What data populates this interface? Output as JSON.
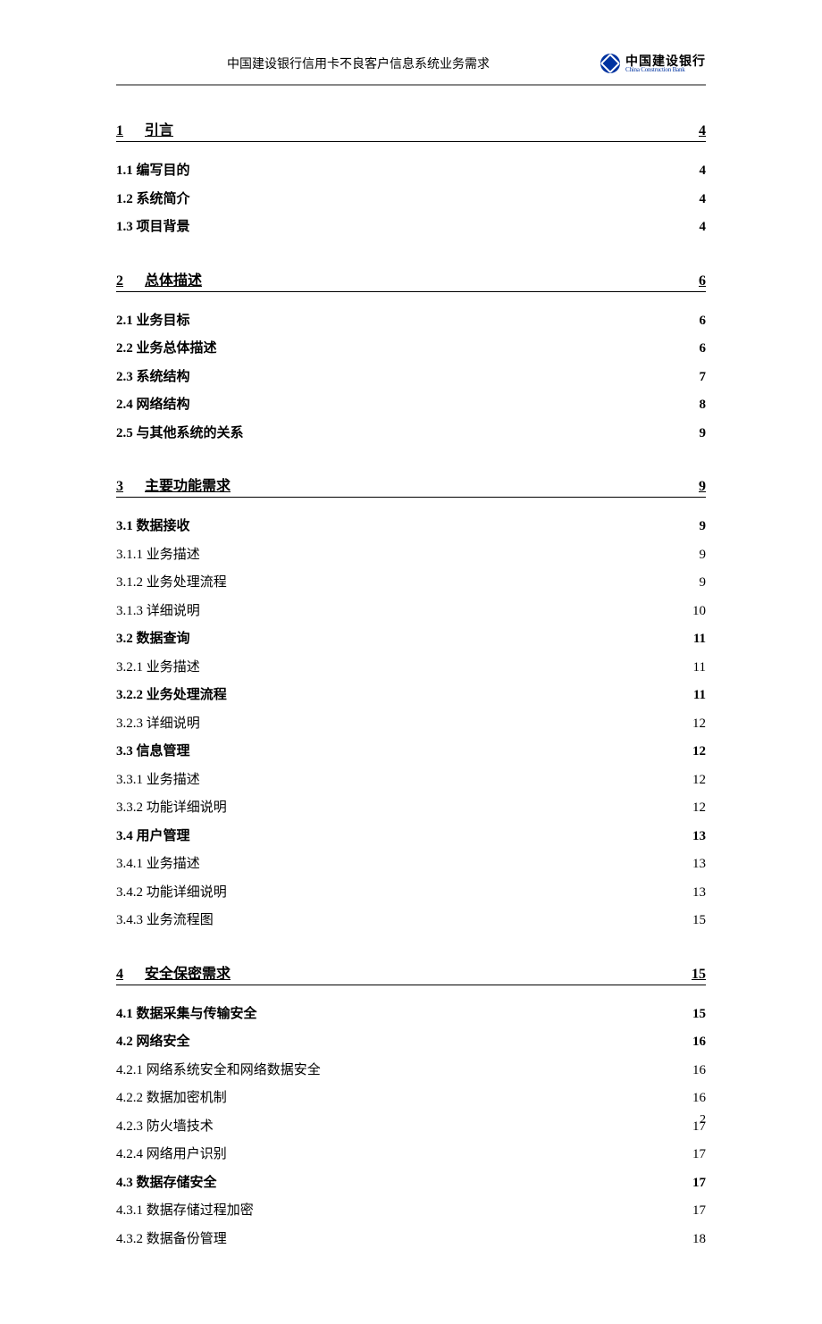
{
  "header": {
    "title": "中国建设银行信用卡不良客户信息系统业务需求",
    "logo_cn": "中国建设银行",
    "logo_en": "China Construction Bank"
  },
  "toc": [
    {
      "num": "1",
      "title": "引言",
      "page": "4",
      "entries": [
        {
          "label": "1.1 编写目的",
          "page": "4",
          "bold": true
        },
        {
          "label": "1.2 系统简介",
          "page": "4",
          "bold": true
        },
        {
          "label": "1.3 项目背景",
          "page": "4",
          "bold": true
        }
      ]
    },
    {
      "num": "2",
      "title": "总体描述",
      "page": "6",
      "entries": [
        {
          "label": "2.1 业务目标",
          "page": "6",
          "bold": true
        },
        {
          "label": "2.2 业务总体描述",
          "page": "6",
          "bold": true
        },
        {
          "label": "2.3 系统结构",
          "page": "7",
          "bold": true
        },
        {
          "label": "2.4 网络结构",
          "page": "8",
          "bold": true
        },
        {
          "label": "2.5 与其他系统的关系",
          "page": "9",
          "bold": true
        }
      ]
    },
    {
      "num": "3",
      "title": "主要功能需求",
      "page": "9",
      "entries": [
        {
          "label": "3.1 数据接收",
          "page": "9",
          "bold": true
        },
        {
          "label": "3.1.1 业务描述",
          "page": "9",
          "bold": false
        },
        {
          "label": "3.1.2 业务处理流程",
          "page": "9",
          "bold": false
        },
        {
          "label": "3.1.3 详细说明",
          "page": "10",
          "bold": false
        },
        {
          "label": "3.2 数据查询",
          "page": "11",
          "bold": true
        },
        {
          "label": "3.2.1 业务描述",
          "page": "11",
          "bold": false
        },
        {
          "label": "3.2.2 业务处理流程",
          "page": "11",
          "bold": true
        },
        {
          "label": "3.2.3 详细说明",
          "page": "12",
          "bold": false
        },
        {
          "label": "3.3 信息管理",
          "page": "12",
          "bold": true
        },
        {
          "label": "3.3.1 业务描述",
          "page": "12",
          "bold": false
        },
        {
          "label": "3.3.2 功能详细说明",
          "page": "12",
          "bold": false
        },
        {
          "label": "3.4 用户管理",
          "page": "13",
          "bold": true
        },
        {
          "label": "3.4.1 业务描述",
          "page": "13",
          "bold": false
        },
        {
          "label": "3.4.2 功能详细说明",
          "page": "13",
          "bold": false
        },
        {
          "label": "3.4.3 业务流程图",
          "page": "15",
          "bold": false
        }
      ]
    },
    {
      "num": "4",
      "title": "安全保密需求",
      "page": "15",
      "entries": [
        {
          "label": "4.1 数据采集与传输安全",
          "page": "15",
          "bold": true
        },
        {
          "label": "4.2 网络安全",
          "page": "16",
          "bold": true
        },
        {
          "label": "4.2.1 网络系统安全和网络数据安全",
          "page": "16",
          "bold": false
        },
        {
          "label": "4.2.2 数据加密机制",
          "page": "16",
          "bold": false
        },
        {
          "label": "4.2.3 防火墙技术",
          "page": "17",
          "bold": false
        },
        {
          "label": "4.2.4 网络用户识别",
          "page": "17",
          "bold": false
        },
        {
          "label": "4.3 数据存储安全",
          "page": "17",
          "bold": true
        },
        {
          "label": "4.3.1 数据存储过程加密",
          "page": "17",
          "bold": false
        },
        {
          "label": "4.3.2 数据备份管理",
          "page": "18",
          "bold": false
        }
      ]
    }
  ],
  "page_number": "2"
}
